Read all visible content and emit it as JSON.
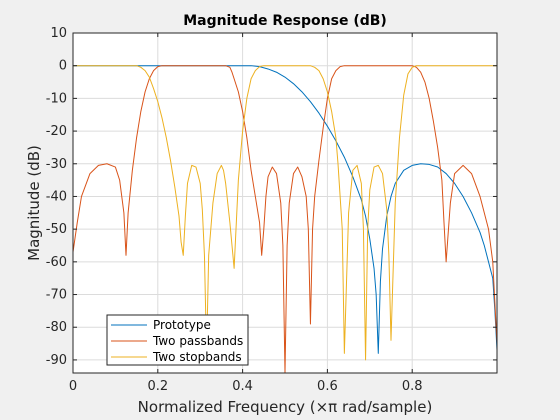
{
  "chart_data": {
    "type": "line",
    "title": "Magnitude Response (dB)",
    "xlabel": "Normalized Frequency (×π rad/sample)",
    "ylabel": "Magnitude (dB)",
    "xlim": [
      0,
      1
    ],
    "ylim": [
      -94,
      10
    ],
    "xticks": [
      0,
      0.2,
      0.4,
      0.6,
      0.8
    ],
    "xtick_labels": [
      "0",
      "0.2",
      "0.4",
      "0.6",
      "0.8"
    ],
    "yticks": [
      10,
      0,
      -10,
      -20,
      -30,
      -40,
      -50,
      -60,
      -70,
      -80,
      -90
    ],
    "ytick_labels": [
      "10",
      "0",
      "-10",
      "-20",
      "-30",
      "-40",
      "-50",
      "-60",
      "-70",
      "-80",
      "-90"
    ],
    "grid": true,
    "legend": {
      "location": "bottom-left"
    },
    "series": [
      {
        "name": "Prototype",
        "color": "#0072BD",
        "x": [
          0,
          0.1,
          0.2,
          0.3,
          0.4,
          0.42,
          0.44,
          0.46,
          0.48,
          0.5,
          0.52,
          0.54,
          0.56,
          0.58,
          0.6,
          0.62,
          0.64,
          0.66,
          0.68,
          0.69,
          0.7,
          0.71,
          0.715,
          0.72,
          0.725,
          0.73,
          0.74,
          0.75,
          0.76,
          0.78,
          0.8,
          0.82,
          0.84,
          0.86,
          0.88,
          0.9,
          0.92,
          0.94,
          0.96,
          0.97,
          0.98,
          0.99,
          0.995,
          1.0
        ],
        "y": [
          0,
          0,
          0,
          0,
          0,
          0,
          -0.3,
          -1.0,
          -2.0,
          -3.5,
          -5.5,
          -8,
          -11,
          -14.5,
          -18.5,
          -23,
          -28,
          -34,
          -41,
          -46,
          -53,
          -62,
          -70,
          -88,
          -66,
          -56,
          -46,
          -40,
          -36,
          -32,
          -30.5,
          -30,
          -30.2,
          -31,
          -33,
          -36,
          -40,
          -45,
          -51,
          -55,
          -60,
          -65,
          -75,
          -87
        ]
      },
      {
        "name": "Two passbands",
        "color": "#D95319",
        "x": [
          0,
          0.01,
          0.02,
          0.04,
          0.06,
          0.08,
          0.1,
          0.11,
          0.12,
          0.125,
          0.13,
          0.14,
          0.15,
          0.16,
          0.17,
          0.18,
          0.19,
          0.2,
          0.21,
          0.22,
          0.23,
          0.24,
          0.25,
          0.26,
          0.28,
          0.3,
          0.32,
          0.34,
          0.36,
          0.37,
          0.375,
          0.38,
          0.39,
          0.4,
          0.41,
          0.42,
          0.43,
          0.44,
          0.445,
          0.45,
          0.455,
          0.46,
          0.47,
          0.48,
          0.49,
          0.495,
          0.5,
          0.505,
          0.51,
          0.52,
          0.53,
          0.54,
          0.55,
          0.555,
          0.56,
          0.565,
          0.57,
          0.58,
          0.59,
          0.6,
          0.61,
          0.62,
          0.63,
          0.64,
          0.66,
          0.68,
          0.7,
          0.72,
          0.74,
          0.76,
          0.78,
          0.8,
          0.81,
          0.82,
          0.83,
          0.84,
          0.85,
          0.86,
          0.87,
          0.875,
          0.88,
          0.89,
          0.9,
          0.92,
          0.94,
          0.96,
          0.98,
          0.99,
          1.0
        ],
        "y": [
          -57,
          -48,
          -40,
          -33,
          -30.5,
          -30,
          -31,
          -35,
          -45,
          -58,
          -45,
          -32,
          -22,
          -14,
          -8,
          -4,
          -1.5,
          -0.3,
          0,
          0,
          0,
          0,
          0,
          0,
          0,
          0,
          0,
          0,
          0,
          -0.5,
          -2,
          -4,
          -8,
          -14,
          -22,
          -32,
          -40,
          -48,
          -58,
          -50,
          -40,
          -34,
          -31,
          -33,
          -42,
          -55,
          -94,
          -55,
          -42,
          -33,
          -31,
          -34,
          -40,
          -50,
          -79,
          -50,
          -40,
          -29,
          -19,
          -10,
          -4,
          -1.5,
          -0.3,
          0,
          0,
          0,
          0,
          0,
          0,
          0,
          0,
          0,
          -0.5,
          -2,
          -5,
          -10,
          -17,
          -25,
          -35,
          -48,
          -60,
          -42,
          -33,
          -30.5,
          -33,
          -40,
          -50,
          -60,
          -85
        ]
      },
      {
        "name": "Two stopbands",
        "color": "#EDB120",
        "x": [
          0,
          0.05,
          0.1,
          0.15,
          0.16,
          0.17,
          0.18,
          0.19,
          0.2,
          0.21,
          0.22,
          0.23,
          0.24,
          0.25,
          0.255,
          0.26,
          0.265,
          0.27,
          0.28,
          0.29,
          0.3,
          0.305,
          0.31,
          0.315,
          0.32,
          0.33,
          0.34,
          0.35,
          0.355,
          0.36,
          0.37,
          0.38,
          0.39,
          0.4,
          0.41,
          0.42,
          0.43,
          0.44,
          0.45,
          0.5,
          0.55,
          0.56,
          0.57,
          0.58,
          0.59,
          0.6,
          0.61,
          0.62,
          0.625,
          0.63,
          0.635,
          0.64,
          0.65,
          0.66,
          0.67,
          0.68,
          0.685,
          0.69,
          0.695,
          0.7,
          0.71,
          0.72,
          0.73,
          0.74,
          0.745,
          0.75,
          0.76,
          0.77,
          0.78,
          0.79,
          0.8,
          0.81,
          0.82,
          0.85,
          0.9,
          0.95,
          1.0
        ],
        "y": [
          0,
          0,
          0,
          0,
          -0.5,
          -1.5,
          -3.5,
          -7,
          -11,
          -16,
          -22,
          -29,
          -37,
          -46,
          -54,
          -58,
          -46,
          -36,
          -30.5,
          -31,
          -36,
          -44,
          -58,
          -88,
          -58,
          -42,
          -33,
          -30.5,
          -32,
          -36,
          -48,
          -62,
          -35,
          -20,
          -10,
          -4,
          -1.5,
          -0.3,
          0,
          0,
          0,
          0,
          -0.5,
          -1.5,
          -4,
          -8,
          -14,
          -22,
          -30,
          -40,
          -50,
          -88,
          -45,
          -32,
          -30.5,
          -36,
          -50,
          -90,
          -50,
          -38,
          -31,
          -30.5,
          -33,
          -44,
          -58,
          -84,
          -42,
          -22,
          -9,
          -2.5,
          -0.5,
          0,
          0,
          0,
          0,
          0,
          0
        ]
      }
    ]
  }
}
